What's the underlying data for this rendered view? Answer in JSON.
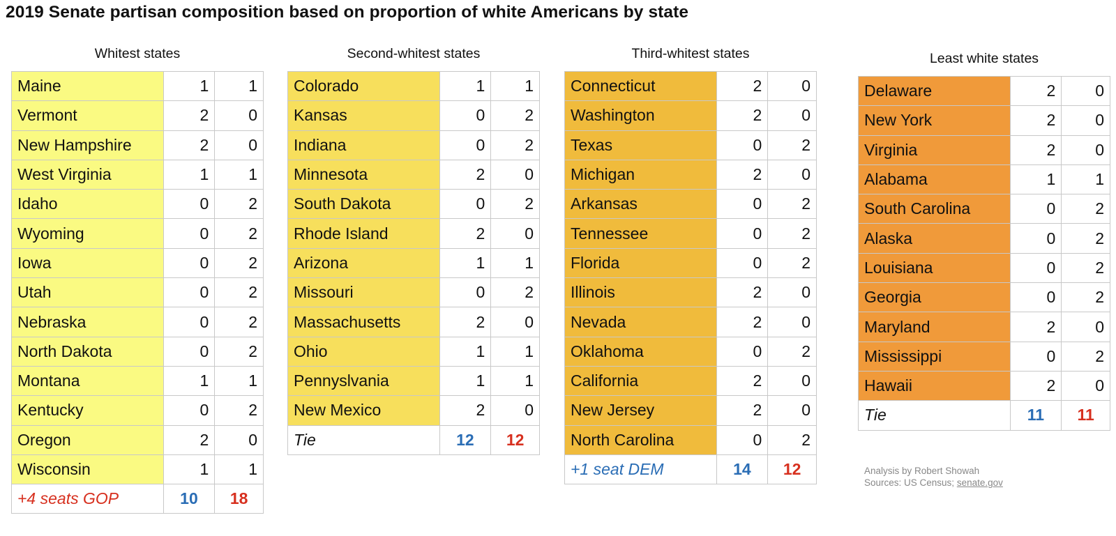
{
  "title": "2019 Senate partisan composition based on proportion of white Americans by state",
  "groups": [
    {
      "title": "Whitest states",
      "color": "#fafa82",
      "states": [
        {
          "name": "Maine",
          "dem": "1",
          "gop": "1"
        },
        {
          "name": "Vermont",
          "dem": "2",
          "gop": "0"
        },
        {
          "name": "New Hampshire",
          "dem": "2",
          "gop": "0"
        },
        {
          "name": "West Virginia",
          "dem": "1",
          "gop": "1"
        },
        {
          "name": "Idaho",
          "dem": "0",
          "gop": "2"
        },
        {
          "name": "Wyoming",
          "dem": "0",
          "gop": "2"
        },
        {
          "name": "Iowa",
          "dem": "0",
          "gop": "2"
        },
        {
          "name": "Utah",
          "dem": "0",
          "gop": "2"
        },
        {
          "name": "Nebraska",
          "dem": "0",
          "gop": "2"
        },
        {
          "name": "North Dakota",
          "dem": "0",
          "gop": "2"
        },
        {
          "name": "Montana",
          "dem": "1",
          "gop": "1"
        },
        {
          "name": "Kentucky",
          "dem": "0",
          "gop": "2"
        },
        {
          "name": "Oregon",
          "dem": "2",
          "gop": "0"
        },
        {
          "name": "Wisconsin",
          "dem": "1",
          "gop": "1"
        }
      ],
      "footer": {
        "label": "+4 seats GOP",
        "label_color": "#d7301f",
        "dem_total": "10",
        "gop_total": "18"
      }
    },
    {
      "title": "Second-whitest states",
      "color": "#f7df5c",
      "states": [
        {
          "name": "Colorado",
          "dem": "1",
          "gop": "1"
        },
        {
          "name": "Kansas",
          "dem": "0",
          "gop": "2"
        },
        {
          "name": "Indiana",
          "dem": "0",
          "gop": "2"
        },
        {
          "name": "Minnesota",
          "dem": "2",
          "gop": "0"
        },
        {
          "name": "South Dakota",
          "dem": "0",
          "gop": "2"
        },
        {
          "name": "Rhode Island",
          "dem": "2",
          "gop": "0"
        },
        {
          "name": "Arizona",
          "dem": "1",
          "gop": "1"
        },
        {
          "name": "Missouri",
          "dem": "0",
          "gop": "2"
        },
        {
          "name": "Massachusetts",
          "dem": "2",
          "gop": "0"
        },
        {
          "name": "Ohio",
          "dem": "1",
          "gop": "1"
        },
        {
          "name": "Pennyslvania",
          "dem": "1",
          "gop": "1"
        },
        {
          "name": "New Mexico",
          "dem": "2",
          "gop": "0"
        }
      ],
      "footer": {
        "label": "Tie",
        "label_color": "#111111",
        "dem_total": "12",
        "gop_total": "12"
      }
    },
    {
      "title": "Third-whitest states",
      "color": "#f0bb3c",
      "states": [
        {
          "name": "Connecticut",
          "dem": "2",
          "gop": "0"
        },
        {
          "name": "Washington",
          "dem": "2",
          "gop": "0"
        },
        {
          "name": "Texas",
          "dem": "0",
          "gop": "2"
        },
        {
          "name": "Michigan",
          "dem": "2",
          "gop": "0"
        },
        {
          "name": "Arkansas",
          "dem": "0",
          "gop": "2"
        },
        {
          "name": "Tennessee",
          "dem": "0",
          "gop": "2"
        },
        {
          "name": "Florida",
          "dem": "0",
          "gop": "2"
        },
        {
          "name": "Illinois",
          "dem": "2",
          "gop": "0"
        },
        {
          "name": "Nevada",
          "dem": "2",
          "gop": "0"
        },
        {
          "name": "Oklahoma",
          "dem": "0",
          "gop": "2"
        },
        {
          "name": "California",
          "dem": "2",
          "gop": "0"
        },
        {
          "name": "New Jersey",
          "dem": "2",
          "gop": "0"
        },
        {
          "name": "North Carolina",
          "dem": "0",
          "gop": "2"
        }
      ],
      "footer": {
        "label": "+1 seat DEM",
        "label_color": "#2a6db5",
        "dem_total": "14",
        "gop_total": "12"
      }
    },
    {
      "title": "Least white states",
      "color": "#f09a3a",
      "states": [
        {
          "name": "Delaware",
          "dem": "2",
          "gop": "0"
        },
        {
          "name": "New York",
          "dem": "2",
          "gop": "0"
        },
        {
          "name": "Virginia",
          "dem": "2",
          "gop": "0"
        },
        {
          "name": "Alabama",
          "dem": "1",
          "gop": "1"
        },
        {
          "name": "South Carolina",
          "dem": "0",
          "gop": "2"
        },
        {
          "name": "Alaska",
          "dem": "0",
          "gop": "2"
        },
        {
          "name": "Louisiana",
          "dem": "0",
          "gop": "2"
        },
        {
          "name": "Georgia",
          "dem": "0",
          "gop": "2"
        },
        {
          "name": "Maryland",
          "dem": "2",
          "gop": "0"
        },
        {
          "name": "Mississippi",
          "dem": "0",
          "gop": "2"
        },
        {
          "name": "Hawaii",
          "dem": "2",
          "gop": "0"
        }
      ],
      "footer": {
        "label": "Tie",
        "label_color": "#111111",
        "dem_total": "11",
        "gop_total": "11"
      }
    }
  ],
  "credit": {
    "line1": "Analysis by Robert Showah",
    "line2_prefix": "Sources: US Census; ",
    "line2_link": "senate.gov"
  },
  "chart_data": {
    "type": "table",
    "title": "2019 Senate partisan composition based on proportion of white Americans by state",
    "tables": [
      {
        "title": "Whitest states",
        "rows": [
          [
            "Maine",
            1,
            1
          ],
          [
            "Vermont",
            2,
            0
          ],
          [
            "New Hampshire",
            2,
            0
          ],
          [
            "West Virginia",
            1,
            1
          ],
          [
            "Idaho",
            0,
            2
          ],
          [
            "Wyoming",
            0,
            2
          ],
          [
            "Iowa",
            0,
            2
          ],
          [
            "Utah",
            0,
            2
          ],
          [
            "Nebraska",
            0,
            2
          ],
          [
            "North Dakota",
            0,
            2
          ],
          [
            "Montana",
            1,
            1
          ],
          [
            "Kentucky",
            0,
            2
          ],
          [
            "Oregon",
            2,
            0
          ],
          [
            "Wisconsin",
            1,
            1
          ]
        ],
        "totals": [
          "+4 seats GOP",
          10,
          18
        ]
      },
      {
        "title": "Second-whitest states",
        "rows": [
          [
            "Colorado",
            1,
            1
          ],
          [
            "Kansas",
            0,
            2
          ],
          [
            "Indiana",
            0,
            2
          ],
          [
            "Minnesota",
            2,
            0
          ],
          [
            "South Dakota",
            0,
            2
          ],
          [
            "Rhode Island",
            2,
            0
          ],
          [
            "Arizona",
            1,
            1
          ],
          [
            "Missouri",
            0,
            2
          ],
          [
            "Massachusetts",
            2,
            0
          ],
          [
            "Ohio",
            1,
            1
          ],
          [
            "Pennyslvania",
            1,
            1
          ],
          [
            "New Mexico",
            2,
            0
          ]
        ],
        "totals": [
          "Tie",
          12,
          12
        ]
      },
      {
        "title": "Third-whitest states",
        "rows": [
          [
            "Connecticut",
            2,
            0
          ],
          [
            "Washington",
            2,
            0
          ],
          [
            "Texas",
            0,
            2
          ],
          [
            "Michigan",
            2,
            0
          ],
          [
            "Arkansas",
            0,
            2
          ],
          [
            "Tennessee",
            0,
            2
          ],
          [
            "Florida",
            0,
            2
          ],
          [
            "Illinois",
            2,
            0
          ],
          [
            "Nevada",
            2,
            0
          ],
          [
            "Oklahoma",
            0,
            2
          ],
          [
            "California",
            2,
            0
          ],
          [
            "New Jersey",
            2,
            0
          ],
          [
            "North Carolina",
            0,
            2
          ]
        ],
        "totals": [
          "+1 seat DEM",
          14,
          12
        ]
      },
      {
        "title": "Least white states",
        "rows": [
          [
            "Delaware",
            2,
            0
          ],
          [
            "New York",
            2,
            0
          ],
          [
            "Virginia",
            2,
            0
          ],
          [
            "Alabama",
            1,
            1
          ],
          [
            "South Carolina",
            0,
            2
          ],
          [
            "Alaska",
            0,
            2
          ],
          [
            "Louisiana",
            0,
            2
          ],
          [
            "Georgia",
            0,
            2
          ],
          [
            "Maryland",
            2,
            0
          ],
          [
            "Mississippi",
            0,
            2
          ],
          [
            "Hawaii",
            2,
            0
          ]
        ],
        "totals": [
          "Tie",
          11,
          11
        ]
      }
    ]
  }
}
